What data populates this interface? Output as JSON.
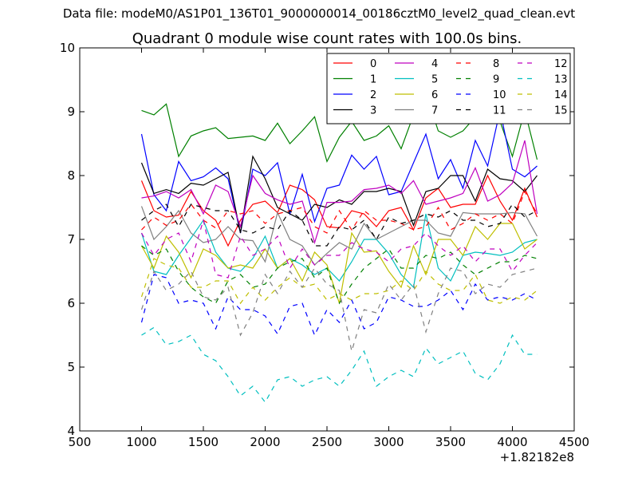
{
  "figure": {
    "suptitle": "Data file: modeM0/AS1P01_136T01_9000000014_00186cztM0_level2_quad_clean.evt"
  },
  "chart_data": {
    "type": "line",
    "title": "Quadrant 0 module wise count rates with 100.0s bins.",
    "xlabel": "",
    "ylabel": "",
    "x_offset_label": "+1.82182e8",
    "xlim": [
      500,
      4500
    ],
    "ylim": [
      4,
      10
    ],
    "xticks": [
      500,
      1000,
      1500,
      2000,
      2500,
      3000,
      3500,
      4000,
      4500
    ],
    "yticks": [
      4,
      5,
      6,
      7,
      8,
      9,
      10
    ],
    "grid": false,
    "legend_position": "top-right",
    "x": [
      1000,
      1100,
      1200,
      1300,
      1400,
      1500,
      1600,
      1700,
      1800,
      1900,
      2000,
      2100,
      2200,
      2300,
      2400,
      2500,
      2600,
      2700,
      2800,
      2900,
      3000,
      3100,
      3200,
      3300,
      3400,
      3500,
      3600,
      3700,
      3800,
      3900,
      4000,
      4100,
      4200
    ],
    "series": [
      {
        "name": "0",
        "color": "#ff0000",
        "dashed": false,
        "values": [
          7.92,
          7.45,
          7.35,
          7.38,
          7.75,
          7.45,
          7.3,
          6.9,
          7.3,
          7.55,
          7.6,
          7.42,
          7.85,
          7.78,
          7.62,
          7.2,
          7.18,
          7.45,
          7.4,
          7.2,
          7.45,
          7.5,
          7.15,
          7.65,
          7.8,
          7.5,
          7.55,
          7.55,
          8.0,
          7.6,
          7.3,
          7.8,
          7.35
        ]
      },
      {
        "name": "1",
        "color": "#008000",
        "dashed": false,
        "values": [
          9.02,
          8.95,
          9.12,
          8.3,
          8.62,
          8.7,
          8.75,
          8.58,
          8.6,
          8.62,
          8.55,
          8.82,
          8.5,
          8.7,
          8.92,
          8.22,
          8.6,
          8.85,
          8.55,
          8.62,
          8.78,
          8.42,
          8.95,
          9.3,
          8.7,
          8.6,
          8.7,
          8.92,
          8.85,
          8.85,
          8.3,
          9.02,
          8.25
        ]
      },
      {
        "name": "2",
        "color": "#0000ff",
        "dashed": false,
        "values": [
          8.65,
          7.7,
          7.45,
          8.22,
          7.92,
          7.98,
          8.12,
          7.95,
          7.1,
          8.1,
          8.0,
          8.2,
          7.4,
          8.02,
          7.28,
          7.8,
          7.85,
          8.32,
          8.1,
          8.3,
          7.7,
          7.75,
          8.2,
          8.65,
          7.95,
          8.25,
          7.8,
          8.55,
          8.15,
          9.02,
          8.1,
          7.98,
          8.15
        ]
      },
      {
        "name": "3",
        "color": "#000000",
        "dashed": false,
        "values": [
          8.2,
          7.72,
          7.78,
          7.72,
          7.88,
          7.85,
          7.95,
          8.05,
          7.1,
          8.3,
          7.95,
          7.5,
          7.4,
          7.3,
          7.55,
          7.5,
          7.62,
          7.55,
          7.75,
          7.75,
          7.8,
          7.75,
          7.22,
          7.75,
          7.8,
          8.0,
          8.0,
          7.6,
          8.1,
          7.95,
          7.92,
          7.75,
          8.0
        ]
      },
      {
        "name": "4",
        "color": "#bf00bf",
        "dashed": false,
        "values": [
          7.65,
          7.68,
          7.75,
          7.65,
          7.78,
          7.4,
          7.85,
          7.75,
          7.2,
          8.0,
          7.72,
          7.62,
          7.55,
          7.6,
          6.95,
          7.58,
          7.58,
          7.6,
          7.78,
          7.8,
          7.85,
          7.72,
          7.92,
          7.55,
          7.6,
          7.65,
          7.72,
          8.12,
          7.6,
          7.7,
          7.88,
          8.55,
          7.4
        ]
      },
      {
        "name": "5",
        "color": "#00bfbf",
        "dashed": false,
        "values": [
          7.1,
          6.5,
          6.45,
          6.75,
          7.02,
          7.3,
          6.8,
          6.55,
          6.5,
          6.7,
          7.05,
          6.55,
          6.7,
          6.6,
          6.45,
          6.55,
          6.35,
          6.65,
          7.0,
          7.0,
          6.78,
          6.45,
          6.25,
          7.4,
          6.55,
          6.35,
          6.75,
          6.8,
          6.78,
          6.75,
          6.8,
          6.95,
          7.0
        ]
      },
      {
        "name": "6",
        "color": "#bfbf00",
        "dashed": false,
        "values": [
          6.9,
          6.55,
          7.05,
          6.8,
          6.4,
          6.85,
          6.75,
          6.55,
          6.6,
          6.55,
          6.85,
          6.55,
          6.7,
          6.35,
          6.8,
          6.6,
          6.0,
          7.1,
          6.8,
          6.82,
          6.5,
          6.25,
          6.9,
          6.45,
          7.0,
          7.0,
          6.75,
          7.2,
          7.0,
          7.25,
          7.25,
          6.85,
          7.0
        ]
      },
      {
        "name": "7",
        "color": "#808080",
        "dashed": false,
        "values": [
          7.52,
          7.0,
          7.2,
          7.45,
          7.1,
          6.95,
          7.0,
          7.2,
          7.0,
          6.98,
          6.65,
          7.42,
          7.0,
          6.9,
          6.6,
          6.78,
          6.95,
          6.85,
          7.25,
          7.0,
          7.1,
          7.2,
          7.3,
          7.3,
          7.1,
          7.05,
          7.42,
          7.4,
          7.4,
          7.4,
          7.42,
          7.4,
          7.05
        ]
      },
      {
        "name": "8",
        "color": "#ff0000",
        "dashed": true,
        "values": [
          7.15,
          7.35,
          7.22,
          7.3,
          7.55,
          7.3,
          7.18,
          7.45,
          7.4,
          7.45,
          7.25,
          7.4,
          7.45,
          7.5,
          7.2,
          7.1,
          7.45,
          7.15,
          7.45,
          7.3,
          7.3,
          7.25,
          7.15,
          7.2,
          7.5,
          7.15,
          7.25,
          7.4,
          7.3,
          7.4,
          7.25,
          7.75,
          7.4
        ]
      },
      {
        "name": "9",
        "color": "#008000",
        "dashed": true,
        "values": [
          6.9,
          6.75,
          6.85,
          6.5,
          6.25,
          6.1,
          6.0,
          6.35,
          6.45,
          6.25,
          6.3,
          6.55,
          6.65,
          6.7,
          6.4,
          6.55,
          6.0,
          6.3,
          6.55,
          6.7,
          6.85,
          6.55,
          6.55,
          6.75,
          6.7,
          6.8,
          6.6,
          6.45,
          6.55,
          6.65,
          6.65,
          6.75,
          6.7
        ]
      },
      {
        "name": "10",
        "color": "#0000ff",
        "dashed": true,
        "values": [
          5.7,
          6.45,
          6.4,
          6.0,
          6.05,
          6.0,
          5.6,
          6.1,
          5.9,
          5.9,
          5.8,
          5.52,
          5.95,
          6.0,
          5.5,
          5.9,
          5.7,
          6.05,
          5.6,
          5.7,
          6.1,
          6.05,
          5.95,
          5.95,
          6.05,
          6.2,
          5.9,
          6.3,
          6.05,
          6.1,
          6.05,
          6.15,
          6.05
        ]
      },
      {
        "name": "11",
        "color": "#000000",
        "dashed": true,
        "values": [
          7.3,
          7.45,
          7.55,
          7.2,
          7.55,
          7.5,
          7.45,
          7.45,
          7.15,
          7.1,
          7.2,
          7.15,
          7.45,
          7.3,
          6.9,
          6.9,
          7.2,
          7.15,
          7.3,
          7.0,
          7.35,
          7.25,
          7.3,
          7.4,
          7.35,
          7.45,
          7.3,
          7.3,
          7.2,
          7.25,
          7.55,
          7.35,
          7.45
        ]
      },
      {
        "name": "12",
        "color": "#bf00bf",
        "dashed": true,
        "values": [
          7.1,
          6.75,
          7.0,
          7.1,
          6.65,
          7.3,
          6.45,
          6.4,
          7.05,
          6.75,
          6.85,
          7.05,
          6.55,
          6.85,
          6.6,
          6.75,
          6.75,
          6.95,
          6.85,
          6.8,
          6.65,
          6.85,
          6.9,
          7.1,
          6.9,
          6.75,
          6.9,
          6.65,
          6.85,
          6.85,
          6.5,
          6.75,
          6.95
        ]
      },
      {
        "name": "13",
        "color": "#00bfbf",
        "dashed": true,
        "values": [
          5.5,
          5.62,
          5.35,
          5.4,
          5.5,
          5.2,
          5.1,
          4.85,
          4.55,
          4.7,
          4.45,
          4.8,
          4.85,
          4.7,
          4.8,
          4.85,
          4.7,
          4.95,
          5.25,
          4.7,
          4.85,
          4.95,
          4.85,
          5.3,
          5.05,
          5.15,
          5.25,
          4.9,
          4.8,
          5.05,
          5.5,
          5.2,
          5.2
        ]
      },
      {
        "name": "14",
        "color": "#bfbf00",
        "dashed": true,
        "values": [
          6.1,
          6.7,
          6.6,
          6.55,
          6.25,
          6.25,
          6.35,
          6.35,
          6.0,
          6.25,
          6.05,
          6.25,
          6.4,
          6.25,
          6.3,
          6.05,
          6.15,
          6.05,
          6.15,
          6.15,
          6.2,
          6.35,
          6.2,
          6.5,
          6.3,
          6.2,
          6.2,
          6.45,
          6.05,
          6.0,
          6.1,
          6.05,
          6.2
        ]
      },
      {
        "name": "15",
        "color": "#808080",
        "dashed": true,
        "values": [
          5.9,
          6.5,
          6.2,
          6.3,
          6.5,
          6.1,
          6.05,
          6.25,
          5.5,
          5.85,
          6.45,
          6.15,
          6.5,
          6.25,
          6.55,
          6.3,
          6.2,
          5.25,
          5.9,
          5.85,
          6.3,
          6.05,
          6.3,
          5.55,
          6.15,
          6.55,
          6.5,
          6.15,
          6.3,
          6.25,
          6.45,
          6.5,
          6.55
        ]
      }
    ]
  }
}
